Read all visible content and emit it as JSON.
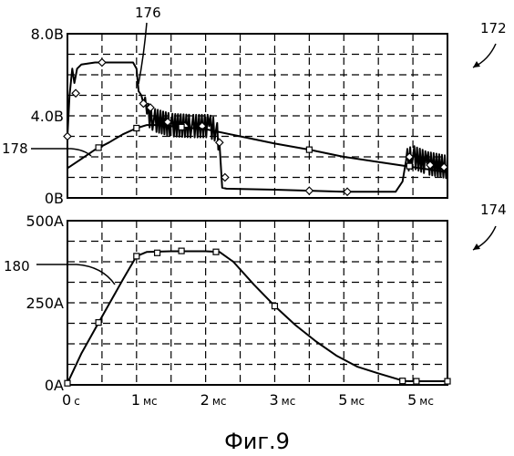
{
  "figure": {
    "caption": "Фиг.9"
  },
  "chart_data": [
    {
      "type": "line",
      "ref": "172",
      "xlim": [
        0,
        5.5
      ],
      "ylim": [
        0,
        8
      ],
      "y_ticks": [
        {
          "value": 8,
          "label": "8.0В"
        },
        {
          "value": 4,
          "label": "4.0В"
        },
        {
          "value": 0,
          "label": "0В"
        }
      ],
      "grid": true,
      "series": [
        {
          "ref": "176",
          "marker": "diamond",
          "noisy_segments": [
            [
              1.1,
              2.2
            ],
            [
              4.9,
              5.5
            ]
          ],
          "points": [
            [
              0.0,
              3.0
            ],
            [
              0.03,
              5.0
            ],
            [
              0.07,
              6.3
            ],
            [
              0.1,
              5.6
            ],
            [
              0.14,
              6.3
            ],
            [
              0.2,
              6.5
            ],
            [
              0.4,
              6.6
            ],
            [
              0.6,
              6.6
            ],
            [
              0.8,
              6.6
            ],
            [
              0.95,
              6.6
            ],
            [
              1.0,
              6.3
            ],
            [
              1.03,
              5.2
            ],
            [
              1.07,
              5.0
            ],
            [
              1.1,
              4.6
            ],
            [
              1.15,
              4.1
            ],
            [
              1.25,
              3.8
            ],
            [
              1.5,
              3.55
            ],
            [
              1.8,
              3.5
            ],
            [
              2.05,
              3.5
            ],
            [
              2.15,
              3.3
            ],
            [
              2.2,
              2.7
            ],
            [
              2.24,
              0.5
            ],
            [
              2.3,
              0.45
            ],
            [
              3.0,
              0.4
            ],
            [
              3.5,
              0.35
            ],
            [
              4.0,
              0.3
            ],
            [
              4.75,
              0.3
            ],
            [
              4.85,
              0.8
            ],
            [
              4.9,
              1.8
            ],
            [
              5.0,
              2.0
            ],
            [
              5.2,
              1.7
            ],
            [
              5.5,
              1.5
            ]
          ],
          "markers": [
            [
              0.0,
              3.0
            ],
            [
              0.12,
              5.1
            ],
            [
              0.5,
              6.6
            ],
            [
              1.1,
              4.6
            ],
            [
              1.2,
              4.4
            ],
            [
              1.45,
              3.7
            ],
            [
              1.7,
              3.5
            ],
            [
              1.95,
              3.5
            ],
            [
              2.2,
              2.7
            ],
            [
              2.28,
              1.0
            ],
            [
              3.5,
              0.35
            ],
            [
              4.05,
              0.3
            ],
            [
              4.95,
              2.0
            ],
            [
              5.25,
              1.6
            ],
            [
              5.45,
              1.5
            ]
          ]
        },
        {
          "ref": "178",
          "marker": "square",
          "points": [
            [
              0.0,
              1.45
            ],
            [
              0.2,
              1.9
            ],
            [
              0.4,
              2.35
            ],
            [
              0.6,
              2.7
            ],
            [
              0.8,
              3.1
            ],
            [
              1.0,
              3.4
            ],
            [
              1.15,
              3.55
            ],
            [
              1.4,
              3.55
            ],
            [
              1.6,
              3.45
            ],
            [
              2.0,
              3.35
            ],
            [
              2.5,
              3.0
            ],
            [
              3.0,
              2.65
            ],
            [
              3.5,
              2.35
            ],
            [
              4.0,
              2.0
            ],
            [
              4.5,
              1.75
            ],
            [
              5.0,
              1.5
            ],
            [
              5.5,
              1.25
            ]
          ],
          "markers": [
            [
              0.45,
              2.45
            ],
            [
              1.0,
              3.4
            ],
            [
              1.65,
              3.45
            ],
            [
              3.5,
              2.35
            ],
            [
              4.95,
              1.55
            ]
          ]
        }
      ]
    },
    {
      "type": "line",
      "ref": "174",
      "xlim": [
        0,
        5.5
      ],
      "ylim": [
        0,
        500
      ],
      "y_ticks": [
        {
          "value": 500,
          "label": "500A"
        },
        {
          "value": 250,
          "label": "250A"
        },
        {
          "value": 0,
          "label": "0A"
        }
      ],
      "x_ticks": [
        {
          "value": 0,
          "num": "0",
          "unit": "с"
        },
        {
          "value": 1,
          "num": "1",
          "unit": "мс"
        },
        {
          "value": 2,
          "num": "2",
          "unit": "мс"
        },
        {
          "value": 3,
          "num": "3",
          "unit": "мс"
        },
        {
          "value": 4,
          "num": "5",
          "unit": "мс"
        },
        {
          "value": 5,
          "num": "5",
          "unit": "мс"
        }
      ],
      "grid": true,
      "series": [
        {
          "ref": "180",
          "marker": "square",
          "points": [
            [
              0.0,
              5
            ],
            [
              0.2,
              95
            ],
            [
              0.4,
              170
            ],
            [
              0.6,
              245
            ],
            [
              0.8,
              320
            ],
            [
              1.0,
              392
            ],
            [
              1.15,
              405
            ],
            [
              1.5,
              407
            ],
            [
              2.0,
              407
            ],
            [
              2.2,
              405
            ],
            [
              2.4,
              375
            ],
            [
              2.7,
              305
            ],
            [
              3.0,
              240
            ],
            [
              3.3,
              182
            ],
            [
              3.6,
              132
            ],
            [
              3.9,
              88
            ],
            [
              4.2,
              55
            ],
            [
              4.5,
              35
            ],
            [
              4.8,
              16
            ],
            [
              4.85,
              12
            ],
            [
              5.0,
              11
            ],
            [
              5.5,
              11
            ]
          ],
          "markers": [
            [
              0.0,
              5
            ],
            [
              0.45,
              190
            ],
            [
              1.0,
              392
            ],
            [
              1.3,
              402
            ],
            [
              1.65,
              408
            ],
            [
              2.15,
              405
            ],
            [
              3.0,
              240
            ],
            [
              4.85,
              12
            ],
            [
              5.05,
              11
            ],
            [
              5.5,
              11
            ]
          ]
        }
      ]
    }
  ],
  "refs": {
    "top_chart": "172",
    "bottom_chart": "174",
    "trace_top": "176",
    "trace_mid": "178",
    "trace_bottom": "180"
  }
}
